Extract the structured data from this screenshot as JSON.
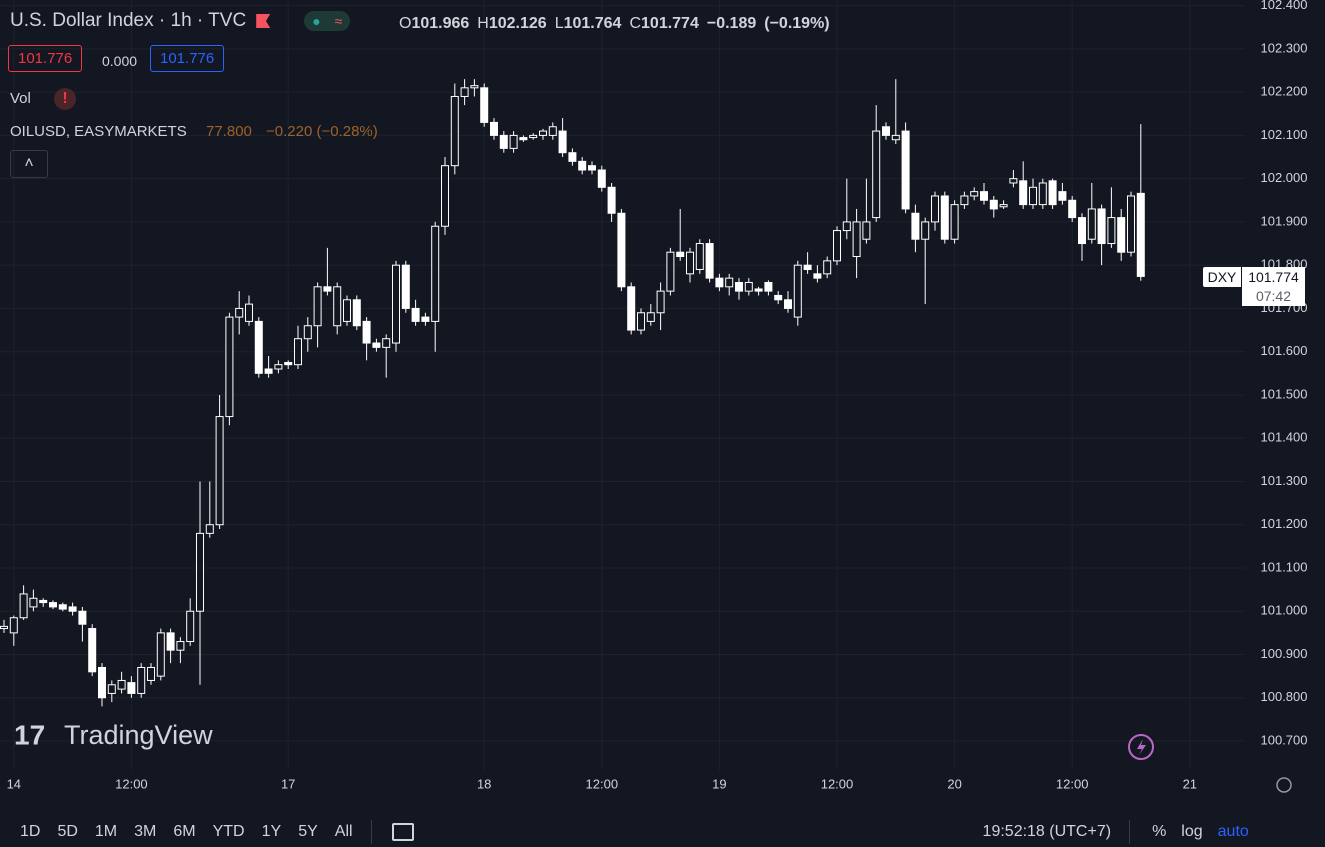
{
  "header": {
    "symbol": "U.S. Dollar Index · 1h · TVC",
    "ohlc_letters": [
      "O",
      "H",
      "L",
      "C"
    ],
    "change": "−0.189",
    "change_pct": "(−0.19%)",
    "bid": "101.776",
    "spread": "0.000",
    "ask": "101.776",
    "vol": "Vol",
    "overlay_symbol": "OILUSD, EASYMARKETS",
    "overlay_price": "77.800",
    "overlay_change": "−0.220 (−0.28%)"
  },
  "watermark": "TradingView",
  "price_label": {
    "symbol": "DXY",
    "countdown": "07:42"
  },
  "chart_data": {
    "type": "candlestick",
    "candle_color": "#ffffff",
    "grid": true,
    "categories": [
      null,
      "14",
      null,
      null,
      null,
      null,
      null,
      null,
      null,
      null,
      null,
      null,
      null,
      "12:00",
      null,
      null,
      null,
      null,
      null,
      null,
      null,
      null,
      null,
      null,
      null,
      null,
      null,
      null,
      null,
      "17",
      null,
      null,
      null,
      null,
      null,
      null,
      null,
      null,
      null,
      null,
      null,
      null,
      null,
      null,
      null,
      null,
      null,
      null,
      null,
      "18",
      null,
      null,
      null,
      null,
      null,
      null,
      null,
      null,
      null,
      null,
      null,
      "12:00",
      null,
      null,
      null,
      null,
      null,
      null,
      null,
      null,
      null,
      null,
      null,
      "19",
      null,
      null,
      null,
      null,
      null,
      null,
      null,
      null,
      null,
      null,
      null,
      "12:00",
      null,
      null,
      null,
      null,
      null,
      null,
      null,
      null,
      null,
      null,
      null,
      "20",
      null,
      null,
      null,
      null,
      null,
      null,
      null,
      null,
      null,
      null,
      null,
      "12:00",
      null,
      null,
      null,
      null,
      null,
      null,
      null,
      null,
      null,
      null,
      null,
      "21"
    ],
    "open": [
      100.96,
      100.95,
      100.985,
      101.01,
      101.025,
      101.02,
      101.015,
      101.01,
      101.0,
      100.96,
      100.87,
      100.81,
      100.82,
      100.835,
      100.81,
      100.84,
      100.85,
      100.95,
      100.91,
      100.93,
      101.0,
      101.18,
      101.2,
      101.45,
      101.68,
      101.67,
      101.67,
      101.56,
      101.56,
      101.575,
      101.57,
      101.63,
      101.66,
      101.75,
      101.66,
      101.67,
      101.72,
      101.67,
      101.62,
      101.61,
      101.62,
      101.8,
      101.7,
      101.68,
      101.67,
      101.89,
      102.03,
      102.19,
      102.21,
      102.21,
      102.13,
      102.1,
      102.07,
      102.095,
      102.095,
      102.1,
      102.1,
      102.11,
      102.06,
      102.04,
      102.03,
      102.02,
      101.98,
      101.92,
      101.75,
      101.65,
      101.67,
      101.69,
      101.74,
      101.83,
      101.78,
      101.79,
      101.85,
      101.77,
      101.75,
      101.76,
      101.74,
      101.745,
      101.76,
      101.73,
      101.72,
      101.68,
      101.8,
      101.78,
      101.78,
      101.81,
      101.88,
      101.82,
      101.86,
      101.91,
      102.12,
      102.09,
      102.11,
      101.92,
      101.86,
      101.9,
      101.96,
      101.86,
      101.94,
      101.96,
      101.97,
      101.95,
      101.935,
      101.99,
      101.995,
      101.94,
      101.94,
      101.995,
      101.97,
      101.95,
      101.91,
      101.86,
      101.93,
      101.85,
      101.91,
      101.83,
      101.966,
      null,
      null,
      null,
      null,
      null
    ],
    "high": [
      100.98,
      100.99,
      101.06,
      101.05,
      101.03,
      101.025,
      101.02,
      101.02,
      101.01,
      100.97,
      100.88,
      100.84,
      100.86,
      100.85,
      100.88,
      100.88,
      100.96,
      100.96,
      100.94,
      101.03,
      101.3,
      101.3,
      101.5,
      101.69,
      101.74,
      101.73,
      101.68,
      101.59,
      101.58,
      101.58,
      101.66,
      101.68,
      101.76,
      101.84,
      101.76,
      101.73,
      101.73,
      101.68,
      101.63,
      101.64,
      101.81,
      101.81,
      101.72,
      101.69,
      101.9,
      102.05,
      102.22,
      102.23,
      102.23,
      102.22,
      102.14,
      102.11,
      102.11,
      102.1,
      102.105,
      102.115,
      102.13,
      102.14,
      102.07,
      102.05,
      102.04,
      102.03,
      101.99,
      101.93,
      101.76,
      101.7,
      101.71,
      101.76,
      101.84,
      101.93,
      101.84,
      101.86,
      101.86,
      101.78,
      101.78,
      101.77,
      101.77,
      101.75,
      101.765,
      101.74,
      101.74,
      101.81,
      101.83,
      101.8,
      101.82,
      101.89,
      102.0,
      101.93,
      102.0,
      102.17,
      102.13,
      102.23,
      102.13,
      101.94,
      101.91,
      101.97,
      101.97,
      101.95,
      101.97,
      101.98,
      101.99,
      101.96,
      101.95,
      102.02,
      102.04,
      102.0,
      102.0,
      102.0,
      101.99,
      101.96,
      101.92,
      101.99,
      101.94,
      101.98,
      101.93,
      101.97,
      102.126,
      null,
      null,
      null,
      null,
      null
    ],
    "low": [
      100.95,
      100.92,
      100.98,
      101.0,
      101.01,
      101.005,
      101.0,
      100.99,
      100.93,
      100.85,
      100.78,
      100.79,
      100.81,
      100.8,
      100.8,
      100.83,
      100.84,
      100.88,
      100.88,
      100.92,
      100.83,
      101.17,
      101.19,
      101.43,
      101.64,
      101.66,
      101.54,
      101.54,
      101.55,
      101.56,
      101.56,
      101.6,
      101.61,
      101.73,
      101.64,
      101.66,
      101.65,
      101.58,
      101.6,
      101.54,
      101.6,
      101.69,
      101.66,
      101.66,
      101.6,
      101.87,
      102.01,
      102.17,
      102.19,
      102.12,
      102.09,
      102.06,
      102.06,
      102.085,
      102.09,
      102.09,
      102.09,
      102.05,
      102.03,
      102.01,
      102.01,
      101.97,
      101.9,
      101.74,
      101.64,
      101.64,
      101.66,
      101.65,
      101.73,
      101.81,
      101.76,
      101.78,
      101.76,
      101.74,
      101.73,
      101.72,
      101.73,
      101.73,
      101.73,
      101.71,
      101.69,
      101.66,
      101.78,
      101.76,
      101.77,
      101.8,
      101.86,
      101.77,
      101.85,
      101.9,
      102.09,
      102.08,
      101.92,
      101.83,
      101.71,
      101.88,
      101.85,
      101.85,
      101.93,
      101.95,
      101.94,
      101.91,
      101.93,
      101.98,
      101.93,
      101.93,
      101.93,
      101.93,
      101.94,
      101.9,
      101.81,
      101.85,
      101.8,
      101.84,
      101.81,
      101.82,
      101.764,
      null,
      null,
      null,
      null,
      null
    ],
    "close": [
      100.965,
      100.985,
      101.04,
      101.03,
      101.02,
      101.01,
      101.005,
      101.0,
      100.97,
      100.86,
      100.8,
      100.83,
      100.84,
      100.81,
      100.87,
      100.87,
      100.95,
      100.91,
      100.93,
      101.0,
      101.18,
      101.2,
      101.45,
      101.68,
      101.7,
      101.71,
      101.55,
      101.55,
      101.57,
      101.57,
      101.63,
      101.66,
      101.75,
      101.74,
      101.75,
      101.72,
      101.66,
      101.62,
      101.61,
      101.63,
      101.8,
      101.7,
      101.67,
      101.67,
      101.89,
      102.03,
      102.19,
      102.21,
      102.215,
      102.13,
      102.1,
      102.07,
      102.1,
      102.09,
      102.1,
      102.11,
      102.12,
      102.06,
      102.04,
      102.02,
      102.02,
      101.98,
      101.92,
      101.75,
      101.65,
      101.69,
      101.69,
      101.74,
      101.83,
      101.82,
      101.83,
      101.85,
      101.77,
      101.75,
      101.77,
      101.74,
      101.76,
      101.74,
      101.74,
      101.72,
      101.7,
      101.8,
      101.79,
      101.77,
      101.81,
      101.88,
      101.9,
      101.9,
      101.9,
      102.11,
      102.1,
      102.1,
      101.93,
      101.86,
      101.9,
      101.96,
      101.86,
      101.94,
      101.96,
      101.97,
      101.95,
      101.93,
      101.94,
      102.0,
      101.94,
      101.98,
      101.99,
      101.94,
      101.95,
      101.91,
      101.85,
      101.93,
      101.85,
      101.91,
      101.83,
      101.96,
      101.774,
      null,
      null,
      null,
      null,
      null
    ],
    "ylim": [
      100.633,
      102.413
    ],
    "yticks": [
      {
        "value": 100.7,
        "label": "100.700"
      },
      {
        "value": 100.8,
        "label": "100.800"
      },
      {
        "value": 100.9,
        "label": "100.900"
      },
      {
        "value": 101.0,
        "label": "101.000"
      },
      {
        "value": 101.1,
        "label": "101.100"
      },
      {
        "value": 101.2,
        "label": "101.200"
      },
      {
        "value": 101.3,
        "label": "101.300"
      },
      {
        "value": 101.4,
        "label": "101.400"
      },
      {
        "value": 101.5,
        "label": "101.500"
      },
      {
        "value": 101.6,
        "label": "101.600"
      },
      {
        "value": 101.7,
        "label": "101.700"
      },
      {
        "value": 101.8,
        "label": "101.800"
      },
      {
        "value": 101.9,
        "label": "101.900"
      },
      {
        "value": 102.0,
        "label": "102.000"
      },
      {
        "value": 102.1,
        "label": "102.100"
      },
      {
        "value": 102.2,
        "label": "102.200"
      },
      {
        "value": 102.3,
        "label": "102.300"
      },
      {
        "value": 102.4,
        "label": "102.400"
      }
    ]
  },
  "toolbar": {
    "ranges": [
      "1D",
      "5D",
      "1M",
      "3M",
      "6M",
      "YTD",
      "1Y",
      "5Y",
      "All"
    ],
    "clock": "19:52:18 (UTC+7)",
    "options": [
      "%",
      "log",
      "auto"
    ]
  }
}
